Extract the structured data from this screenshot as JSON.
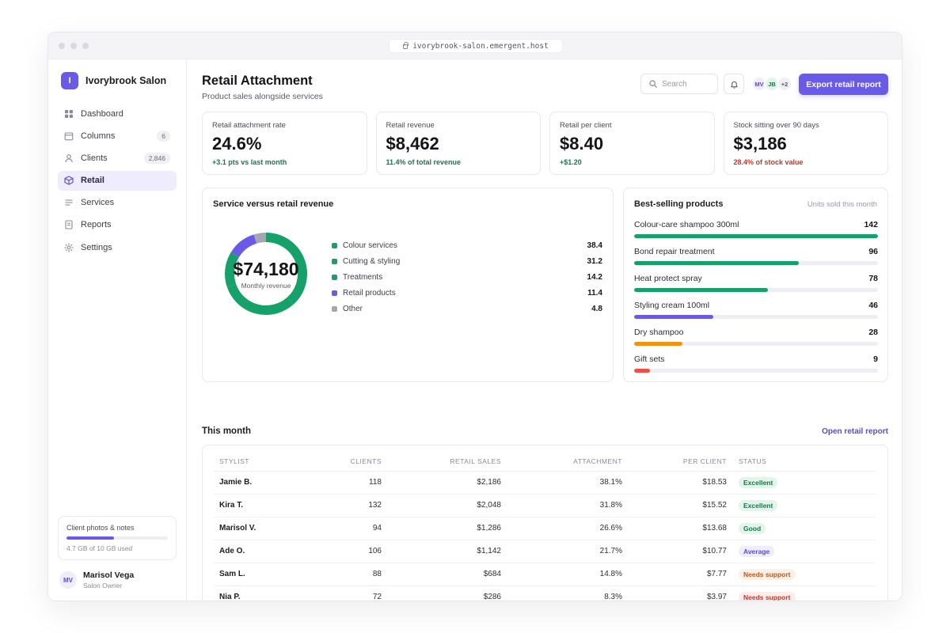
{
  "browser": {
    "url": "ivorybrook-salon.emergent.host"
  },
  "brand": {
    "initial": "I",
    "name": "Ivorybrook Salon"
  },
  "sidebar": {
    "items": [
      {
        "label": "Dashboard",
        "icon": "grid-icon",
        "badge": ""
      },
      {
        "label": "Columns",
        "icon": "calendar-icon",
        "badge": "6"
      },
      {
        "label": "Clients",
        "icon": "person-icon",
        "badge": "2,846"
      },
      {
        "label": "Retail",
        "icon": "box-icon",
        "badge": "",
        "active": true
      },
      {
        "label": "Services",
        "icon": "list-icon",
        "badge": ""
      },
      {
        "label": "Reports",
        "icon": "document-icon",
        "badge": ""
      },
      {
        "label": "Settings",
        "icon": "gear-icon",
        "badge": ""
      }
    ],
    "storage": {
      "title": "Client photos & notes",
      "used_fraction": 0.47,
      "used_text": "4.7 GB of 10 GB used"
    },
    "user": {
      "initials": "MV",
      "name": "Marisol Vega",
      "role": "Salon Owner"
    }
  },
  "header": {
    "title": "Retail Attachment",
    "subtitle": "Product sales alongside services",
    "search_placeholder": "Search",
    "avatars": [
      {
        "initials": "MV",
        "bg": "#eeecfd",
        "fg": "#5a4bd6"
      },
      {
        "initials": "JB",
        "bg": "#e3f4ea",
        "fg": "#17784a"
      },
      {
        "initials": "+2",
        "bg": "#f0f0f4",
        "fg": "#55555f"
      }
    ],
    "export_label": "Export retail report"
  },
  "kpis": [
    {
      "label": "Retail attachment rate",
      "value": "24.6%",
      "delta": "+3.1 pts vs last month",
      "delta_color": "#17784a"
    },
    {
      "label": "Retail revenue",
      "value": "$8,462",
      "delta": "11.4% of total revenue",
      "delta_color": "#17784a"
    },
    {
      "label": "Retail per client",
      "value": "$8.40",
      "delta": "+$1.20",
      "delta_color": "#17784a"
    },
    {
      "label": "Stock sitting over 90 days",
      "value": "$3,186",
      "delta": "28.4% of stock value",
      "delta_color": "#c0392b"
    }
  ],
  "revenue_card": {
    "title": "Service versus retail revenue",
    "center_value": "$74,180",
    "center_label": "Monthly revenue"
  },
  "chart_data": {
    "type": "pie",
    "title": "Service versus retail revenue",
    "categories": [
      "Colour services",
      "Cutting & styling",
      "Treatments",
      "Retail products",
      "Other"
    ],
    "values": [
      38.4,
      31.2,
      14.2,
      11.4,
      4.8
    ],
    "value_labels": [
      "38.4",
      "31.2",
      "14.2",
      "11.4",
      "4.8"
    ],
    "colors": [
      "#16a06a",
      "#16a06a",
      "#16a06a",
      "#6a5ae8",
      "#a6a6b3"
    ],
    "legend": "right"
  },
  "products_card": {
    "title": "Best-selling products",
    "subtitle": "Units sold this month",
    "max": 142,
    "items": [
      {
        "name": "Colour-care shampoo 300ml",
        "count": 142,
        "color": "#16a06a"
      },
      {
        "name": "Bond repair treatment",
        "count": 96,
        "color": "#16a06a"
      },
      {
        "name": "Heat protect spray",
        "count": 78,
        "color": "#16a06a"
      },
      {
        "name": "Styling cream 100ml",
        "count": 46,
        "color": "#6a5ae8"
      },
      {
        "name": "Dry shampoo",
        "count": 28,
        "color": "#f0930f"
      },
      {
        "name": "Gift sets",
        "count": 9,
        "color": "#ef4d45"
      }
    ]
  },
  "table_section": {
    "title": "This month",
    "link": "Open retail report",
    "columns": [
      "STYLIST",
      "CLIENTS",
      "RETAIL SALES",
      "ATTACHMENT",
      "PER CLIENT",
      "STATUS"
    ],
    "rows": [
      {
        "stylist": "Jamie B.",
        "clients": "118",
        "sales": "$2,186",
        "attachment": "38.1%",
        "per_client": "$18.53",
        "status": "Excellent",
        "status_bg": "#e3f4ea",
        "status_fg": "#17784a"
      },
      {
        "stylist": "Kira T.",
        "clients": "132",
        "sales": "$2,048",
        "attachment": "31.8%",
        "per_client": "$15.52",
        "status": "Excellent",
        "status_bg": "#e3f4ea",
        "status_fg": "#17784a"
      },
      {
        "stylist": "Marisol V.",
        "clients": "94",
        "sales": "$1,286",
        "attachment": "26.6%",
        "per_client": "$13.68",
        "status": "Good",
        "status_bg": "#e3f4ea",
        "status_fg": "#17784a"
      },
      {
        "stylist": "Ade O.",
        "clients": "106",
        "sales": "$1,142",
        "attachment": "21.7%",
        "per_client": "$10.77",
        "status": "Average",
        "status_bg": "#eeecfd",
        "status_fg": "#5a4bd6"
      },
      {
        "stylist": "Sam L.",
        "clients": "88",
        "sales": "$684",
        "attachment": "14.8%",
        "per_client": "$7.77",
        "status": "Needs support",
        "status_bg": "#fdf0e7",
        "status_fg": "#c0561e"
      },
      {
        "stylist": "Nia P.",
        "clients": "72",
        "sales": "$286",
        "attachment": "8.3%",
        "per_client": "$3.97",
        "status": "Needs support",
        "status_bg": "#fdecec",
        "status_fg": "#c0392b"
      }
    ]
  }
}
